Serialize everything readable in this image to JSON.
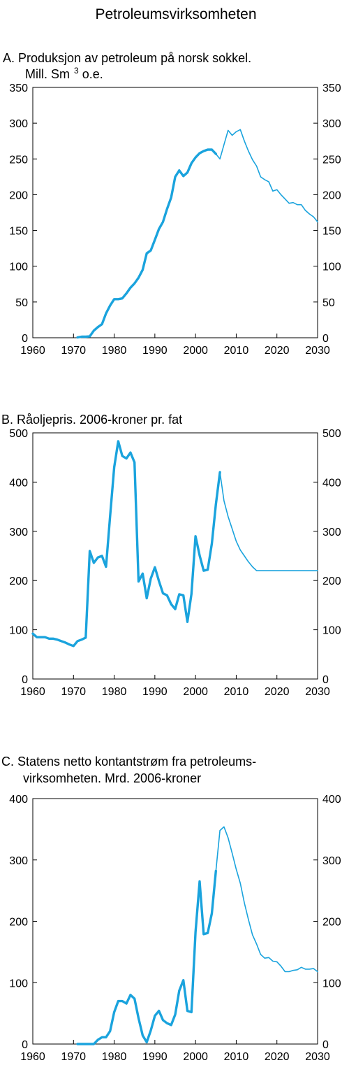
{
  "page_title": "Petroleumsvirksomheten",
  "colors": {
    "line": "#1aa3dd",
    "axis": "#000000"
  },
  "chart_data": [
    {
      "type": "line",
      "title_line1": "A.  Produksjon av petroleum på norsk sokkel.",
      "title_line2": "Mill. Sm",
      "title_line2_sup": "3",
      "title_line2_end": " o.e.",
      "xlim": [
        1960,
        2030
      ],
      "ylim": [
        0,
        350
      ],
      "xticks": [
        1960,
        1970,
        1980,
        1990,
        2000,
        2010,
        2020,
        2030
      ],
      "yticks": [
        0,
        50,
        100,
        150,
        200,
        250,
        300,
        350
      ],
      "grid": false,
      "series": [
        {
          "style": "historical",
          "x": [
            1971,
            1972,
            1973,
            1974,
            1975,
            1976,
            1977,
            1978,
            1979,
            1980,
            1981,
            1982,
            1983,
            1984,
            1985,
            1986,
            1987,
            1988,
            1989,
            1990,
            1991,
            1992,
            1993,
            1994,
            1995,
            1996,
            1997,
            1998,
            1999,
            2000,
            2001,
            2002,
            2003,
            2004,
            2005
          ],
          "y": [
            0.5,
            1.5,
            1.5,
            2,
            10,
            15,
            19,
            34,
            45,
            54,
            54,
            55,
            62,
            70,
            76,
            84,
            95,
            118,
            122,
            137,
            152,
            162,
            180,
            196,
            225,
            234,
            226,
            231,
            244,
            252,
            258,
            261,
            263,
            263,
            257
          ]
        },
        {
          "style": "projection",
          "x": [
            2005,
            2006,
            2007,
            2008,
            2009,
            2010,
            2011,
            2012,
            2013,
            2014,
            2015,
            2016,
            2017,
            2018,
            2019,
            2020,
            2021,
            2022,
            2023,
            2024,
            2025,
            2026,
            2027,
            2028,
            2029,
            2030
          ],
          "y": [
            257,
            250,
            270,
            290,
            283,
            288,
            291,
            275,
            261,
            249,
            240,
            225,
            221,
            218,
            205,
            207,
            200,
            194,
            188,
            189,
            186,
            186,
            178,
            173,
            169,
            162
          ]
        }
      ]
    },
    {
      "type": "line",
      "title_line1": "B. Råoljepris. 2006-kroner pr. fat",
      "xlim": [
        1960,
        2030
      ],
      "ylim": [
        0,
        500
      ],
      "xticks": [
        1960,
        1970,
        1980,
        1990,
        2000,
        2010,
        2020,
        2030
      ],
      "yticks": [
        0,
        100,
        200,
        300,
        400,
        500
      ],
      "grid": false,
      "series": [
        {
          "style": "historical",
          "x": [
            1960,
            1961,
            1962,
            1963,
            1964,
            1965,
            1966,
            1967,
            1968,
            1969,
            1970,
            1971,
            1972,
            1973,
            1974,
            1975,
            1976,
            1977,
            1978,
            1979,
            1980,
            1981,
            1982,
            1983,
            1984,
            1985,
            1986,
            1987,
            1988,
            1989,
            1990,
            1991,
            1992,
            1993,
            1994,
            1995,
            1996,
            1997,
            1998,
            1999,
            2000,
            2001,
            2002,
            2003,
            2004,
            2005,
            2006
          ],
          "y": [
            92,
            85,
            85,
            85,
            82,
            82,
            80,
            77,
            74,
            70,
            67,
            77,
            80,
            84,
            260,
            236,
            247,
            250,
            228,
            330,
            430,
            483,
            453,
            448,
            460,
            440,
            198,
            214,
            164,
            204,
            227,
            199,
            174,
            170,
            152,
            142,
            172,
            170,
            116,
            173,
            290,
            251,
            220,
            222,
            275,
            355,
            420
          ]
        },
        {
          "style": "projection",
          "x": [
            2006,
            2007,
            2008,
            2009,
            2010,
            2011,
            2012,
            2013,
            2014,
            2015,
            2016,
            2017,
            2018,
            2019,
            2020,
            2021,
            2022,
            2023,
            2024,
            2025,
            2026,
            2027,
            2028,
            2029,
            2030
          ],
          "y": [
            420,
            362,
            330,
            305,
            280,
            262,
            250,
            238,
            228,
            220,
            220,
            220,
            220,
            220,
            220,
            220,
            220,
            220,
            220,
            220,
            220,
            220,
            220,
            220,
            220
          ]
        }
      ]
    },
    {
      "type": "line",
      "title_line1": "C. Statens netto kontantstrøm fra petroleums-",
      "title_line2": "virksomheten. Mrd. 2006-kroner",
      "xlim": [
        1960,
        2030
      ],
      "ylim": [
        0,
        400
      ],
      "xticks": [
        1960,
        1970,
        1980,
        1990,
        2000,
        2010,
        2020,
        2030
      ],
      "yticks": [
        0,
        100,
        200,
        300,
        400
      ],
      "grid": false,
      "series": [
        {
          "style": "historical",
          "x": [
            1971,
            1972,
            1973,
            1974,
            1975,
            1976,
            1977,
            1978,
            1979,
            1980,
            1981,
            1982,
            1983,
            1984,
            1985,
            1986,
            1987,
            1988,
            1989,
            1990,
            1991,
            1992,
            1993,
            1994,
            1995,
            1996,
            1997,
            1998,
            1999,
            2000,
            2001,
            2002,
            2003,
            2004,
            2005
          ],
          "y": [
            0,
            0,
            0,
            0,
            0,
            7,
            11,
            11,
            21,
            52,
            70,
            70,
            66,
            80,
            74,
            42,
            14,
            3,
            22,
            46,
            54,
            39,
            34,
            31,
            48,
            87,
            104,
            54,
            52,
            182,
            265,
            179,
            181,
            213,
            282
          ]
        },
        {
          "style": "projection",
          "x": [
            2005,
            2006,
            2007,
            2008,
            2009,
            2010,
            2011,
            2012,
            2013,
            2014,
            2015,
            2016,
            2017,
            2018,
            2019,
            2020,
            2021,
            2022,
            2023,
            2024,
            2025,
            2026,
            2027,
            2028,
            2029,
            2030
          ],
          "y": [
            282,
            348,
            354,
            336,
            311,
            285,
            262,
            230,
            203,
            178,
            163,
            146,
            140,
            141,
            135,
            134,
            127,
            118,
            118,
            120,
            121,
            125,
            122,
            122,
            123,
            118
          ]
        }
      ]
    }
  ]
}
